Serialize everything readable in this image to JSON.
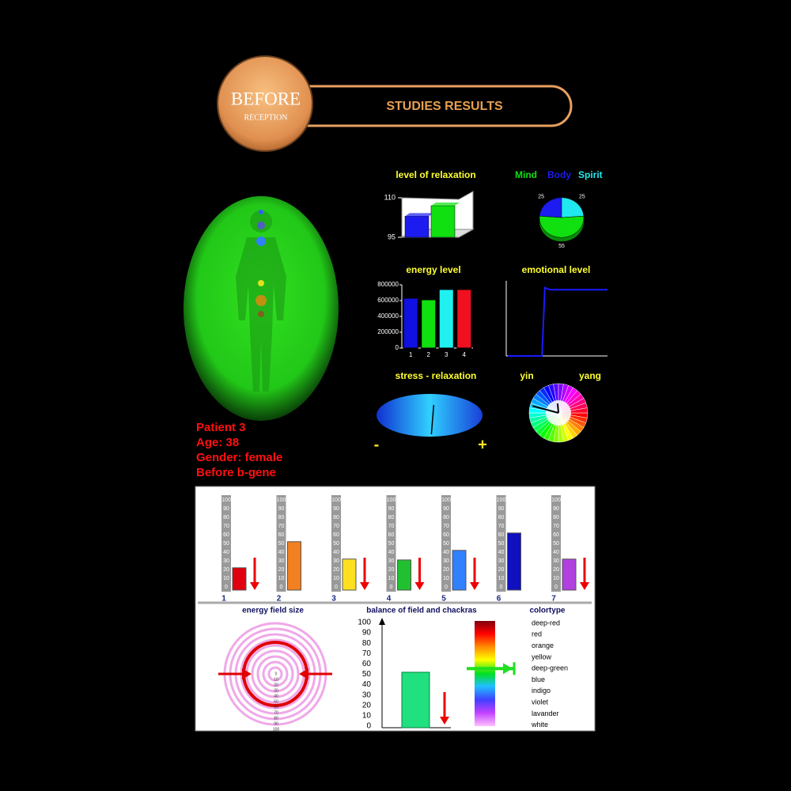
{
  "header": {
    "badge_title": "BEFORE",
    "badge_subtitle": "RECEPTION",
    "title": "STUDIES RESULTS"
  },
  "patient": [
    "Patient 3",
    "Age: 38",
    "Gender: female",
    "Before b-gene"
  ],
  "chart_data": [
    {
      "type": "bar3d",
      "title": "level of relaxation",
      "categories": [
        null,
        null
      ],
      "values": [
        103,
        107
      ],
      "colors": [
        "#1c1cf0",
        "#10e010"
      ],
      "ylim": [
        95,
        110
      ],
      "yticks": [
        95,
        110
      ]
    },
    {
      "type": "pie",
      "categories": [
        "Mind",
        "Body",
        "Spirit"
      ],
      "values": [
        55,
        25,
        25
      ],
      "colors": [
        "#10e010",
        "#1c1cf0",
        "#20e8f0"
      ]
    },
    {
      "type": "bar",
      "title": "energy level",
      "categories": [
        "1",
        "2",
        "3",
        "4"
      ],
      "values": [
        630000,
        610000,
        740000,
        740000
      ],
      "colors": [
        "#1010e0",
        "#10e010",
        "#20f0f0",
        "#f01020"
      ],
      "ylim": [
        0,
        800000
      ],
      "yticks": [
        0,
        200000,
        400000,
        600000,
        800000
      ]
    },
    {
      "type": "line",
      "title": "emotional level",
      "values": [
        0,
        0,
        0,
        0,
        0,
        0,
        0,
        0,
        0,
        0,
        0,
        0,
        0,
        100,
        98,
        97,
        97,
        97,
        97,
        97,
        97,
        97,
        97,
        97,
        97,
        97,
        97,
        97,
        97,
        97,
        97,
        97,
        97,
        97,
        97,
        97
      ],
      "color": "#1a1aff",
      "ylim": [
        0,
        110
      ]
    },
    {
      "type": "gauge",
      "title": "stress - relaxation",
      "value": 0.05,
      "xlim": [
        -1,
        1
      ],
      "xticks": [
        {
          "value": -1,
          "label": "-"
        },
        {
          "value": 1,
          "label": "+"
        }
      ]
    },
    {
      "type": "dial",
      "xticks": [
        {
          "value": 180,
          "label": "yin"
        },
        {
          "value": 0,
          "label": "yang"
        }
      ],
      "values": [
        165,
        95
      ]
    },
    {
      "type": "chakras",
      "categories": [
        "1",
        "2",
        "3",
        "4",
        "5",
        "6",
        "7"
      ],
      "values": [
        22,
        52,
        32,
        31,
        42,
        62,
        32
      ],
      "colors": [
        "#e00010",
        "#f08020",
        "#ffe020",
        "#20c030",
        "#3080ff",
        "#1010c0",
        "#b040e0"
      ],
      "arrows": [
        true,
        false,
        true,
        true,
        true,
        false,
        true
      ],
      "ylim": [
        0,
        100
      ],
      "yticks": [
        0,
        10,
        20,
        30,
        40,
        50,
        60,
        70,
        80,
        90,
        100
      ]
    },
    {
      "type": "rings",
      "title": "energy field size",
      "value": 57,
      "ylim": [
        0,
        100
      ],
      "yticks": [
        0,
        10,
        20,
        30,
        40,
        50,
        60,
        70,
        80,
        90,
        100
      ]
    },
    {
      "type": "balance",
      "title": "balance of field and chackras",
      "value": 52,
      "color": "#20e080",
      "arrow": true,
      "ylim": [
        0,
        100
      ],
      "yticks": [
        0,
        10,
        20,
        30,
        40,
        50,
        60,
        70,
        80,
        90,
        100
      ]
    },
    {
      "type": "colortype",
      "title": "colortype",
      "categories": [
        "deep-red",
        "red",
        "orange",
        "yellow",
        "deep-green",
        "blue",
        "indigo",
        "violet",
        "lavander",
        "white"
      ],
      "marker_index": 4
    }
  ]
}
